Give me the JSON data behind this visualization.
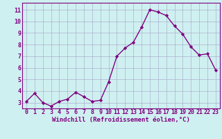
{
  "x": [
    0,
    1,
    2,
    3,
    4,
    5,
    6,
    7,
    8,
    9,
    10,
    11,
    12,
    13,
    14,
    15,
    16,
    17,
    18,
    19,
    20,
    21,
    22,
    23
  ],
  "y": [
    3.1,
    3.8,
    3.0,
    2.7,
    3.1,
    3.3,
    3.9,
    3.5,
    3.1,
    3.2,
    4.8,
    7.0,
    7.7,
    8.2,
    9.5,
    11.0,
    10.8,
    10.5,
    9.6,
    8.9,
    7.8,
    7.1,
    7.2,
    5.8
  ],
  "line_color": "#800080",
  "marker": "D",
  "marker_size": 2.2,
  "line_width": 1.0,
  "bg_color": "#cff0f0",
  "grid_color": "#aaaacc",
  "xlabel": "Windchill (Refroidissement éolien,°C)",
  "yticks": [
    3,
    4,
    5,
    6,
    7,
    8,
    9,
    10,
    11
  ],
  "ylim": [
    2.5,
    11.6
  ],
  "xlim": [
    -0.5,
    23.5
  ],
  "tick_fontsize": 6.0,
  "xlabel_fontsize": 6.5,
  "label_color": "#800080"
}
